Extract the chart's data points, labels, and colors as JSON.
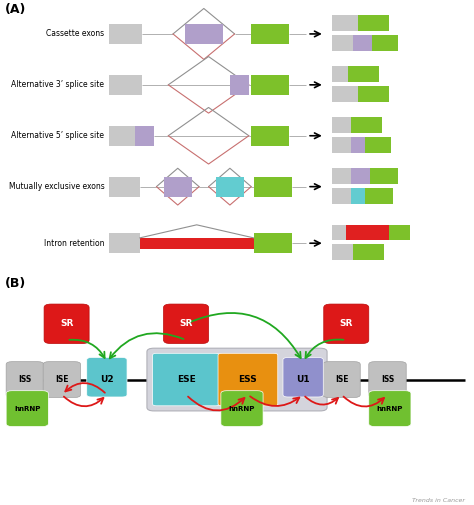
{
  "bg_color": "#ffffff",
  "gray": "#c8c8c8",
  "purple": "#b09fca",
  "green": "#7dc12a",
  "red_intron": "#e02020",
  "cyan": "#62ccd0",
  "splicing_labels": [
    "Cassette exons",
    "Alternative 3’ splice site",
    "Alternative 5’ splice site",
    "Mutually exclusive exons",
    "Intron retention"
  ],
  "watermark": "Trends in Cancer"
}
